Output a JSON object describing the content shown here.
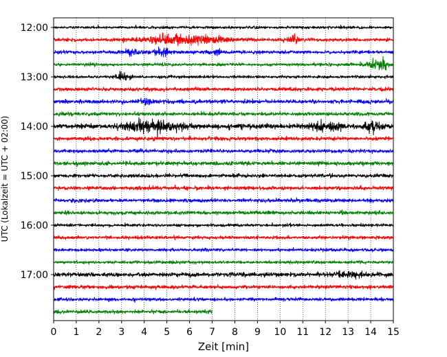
{
  "chart_data": {
    "type": "line",
    "xlabel": "Zeit  [min]",
    "ylabel": "UTC (Lokalzeit = UTC + 02:00)",
    "xlim": [
      0,
      15
    ],
    "xticks": [
      "0",
      "1",
      "2",
      "3",
      "4",
      "5",
      "6",
      "7",
      "8",
      "9",
      "10",
      "11",
      "12",
      "13",
      "14",
      "15"
    ],
    "yticks": [
      "12:00",
      "13:00",
      "14:00",
      "15:00",
      "16:00",
      "17:00"
    ],
    "grid": "vertical dotted",
    "trace_colors": [
      "#000000",
      "#ff0000",
      "#0000ff",
      "#008000"
    ],
    "traces": [
      {
        "start": "12:00",
        "end_min": 15,
        "color": "black",
        "amplitude": 1.0,
        "events": []
      },
      {
        "start": "12:15",
        "end_min": 15,
        "color": "red",
        "amplitude": 1.2,
        "events": [
          [
            5.8,
            3.5,
            1.2
          ],
          [
            10.6,
            2.0,
            0.2
          ]
        ]
      },
      {
        "start": "12:30",
        "end_min": 15,
        "color": "blue",
        "amplitude": 1.2,
        "events": [
          [
            4.8,
            2.0,
            0.3
          ],
          [
            7.2,
            2.5,
            0.2
          ],
          [
            3.4,
            1.6,
            0.3
          ]
        ]
      },
      {
        "start": "12:45",
        "end_min": 15,
        "color": "green",
        "amplitude": 1.1,
        "events": [
          [
            14.2,
            2.5,
            0.3
          ],
          [
            14.6,
            4.0,
            0.1
          ]
        ]
      },
      {
        "start": "13:00",
        "end_min": 15,
        "color": "black",
        "amplitude": 1.0,
        "events": [
          [
            3.1,
            2.5,
            0.2
          ]
        ]
      },
      {
        "start": "13:15",
        "end_min": 15,
        "color": "red",
        "amplitude": 1.3,
        "events": []
      },
      {
        "start": "13:30",
        "end_min": 15,
        "color": "blue",
        "amplitude": 1.4,
        "events": [
          [
            4.1,
            2.0,
            0.2
          ]
        ]
      },
      {
        "start": "13:45",
        "end_min": 15,
        "color": "green",
        "amplitude": 1.3,
        "events": []
      },
      {
        "start": "14:00",
        "end_min": 15,
        "color": "black",
        "amplitude": 1.8,
        "events": [
          [
            3.6,
            2.5,
            0.5
          ],
          [
            4.8,
            2.8,
            0.6
          ],
          [
            11.7,
            3.5,
            0.15
          ],
          [
            12.4,
            2.5,
            0.2
          ],
          [
            14.1,
            3.0,
            0.25
          ]
        ]
      },
      {
        "start": "14:15",
        "end_min": 15,
        "color": "red",
        "amplitude": 1.3,
        "events": []
      },
      {
        "start": "14:30",
        "end_min": 15,
        "color": "blue",
        "amplitude": 1.3,
        "events": []
      },
      {
        "start": "14:45",
        "end_min": 15,
        "color": "green",
        "amplitude": 1.4,
        "events": []
      },
      {
        "start": "15:00",
        "end_min": 15,
        "color": "black",
        "amplitude": 1.3,
        "events": []
      },
      {
        "start": "15:15",
        "end_min": 15,
        "color": "red",
        "amplitude": 1.3,
        "events": []
      },
      {
        "start": "15:30",
        "end_min": 15,
        "color": "blue",
        "amplitude": 1.3,
        "events": []
      },
      {
        "start": "15:45",
        "end_min": 15,
        "color": "green",
        "amplitude": 1.3,
        "events": []
      },
      {
        "start": "16:00",
        "end_min": 15,
        "color": "black",
        "amplitude": 1.1,
        "events": []
      },
      {
        "start": "16:15",
        "end_min": 15,
        "color": "red",
        "amplitude": 1.2,
        "events": []
      },
      {
        "start": "16:30",
        "end_min": 15,
        "color": "blue",
        "amplitude": 1.1,
        "events": []
      },
      {
        "start": "16:45",
        "end_min": 15,
        "color": "green",
        "amplitude": 1.1,
        "events": []
      },
      {
        "start": "17:00",
        "end_min": 15,
        "color": "black",
        "amplitude": 1.6,
        "events": [
          [
            13.0,
            1.6,
            0.4
          ]
        ]
      },
      {
        "start": "17:15",
        "end_min": 15,
        "color": "red",
        "amplitude": 1.3,
        "events": []
      },
      {
        "start": "17:30",
        "end_min": 15,
        "color": "blue",
        "amplitude": 1.2,
        "events": []
      },
      {
        "start": "17:45",
        "end_min": 7,
        "color": "green",
        "amplitude": 1.3,
        "events": []
      }
    ]
  }
}
